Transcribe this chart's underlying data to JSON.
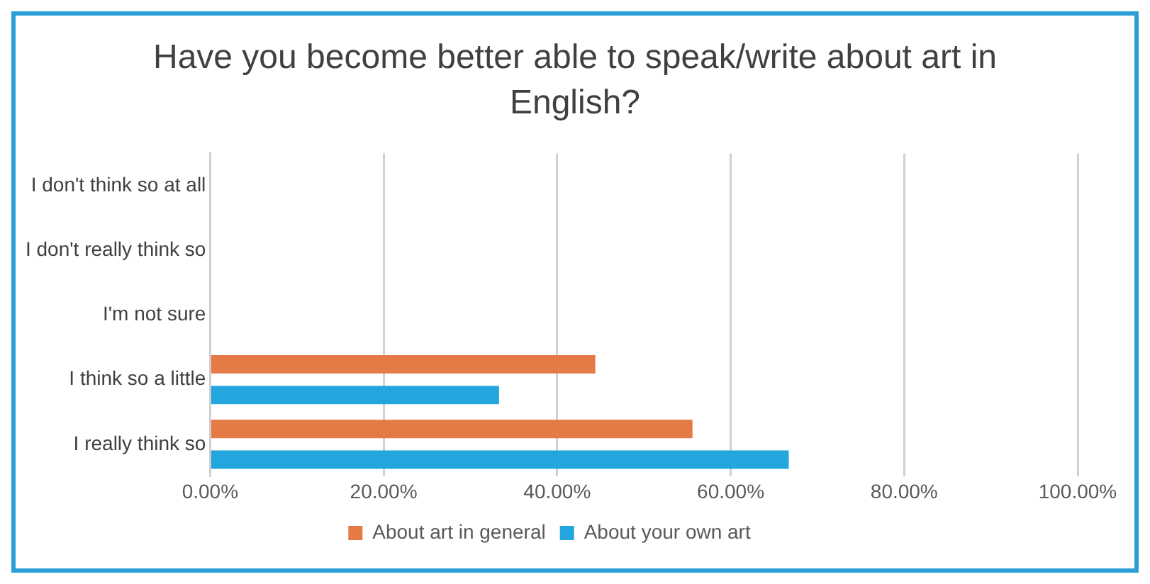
{
  "chart_data": {
    "type": "bar",
    "orientation": "horizontal",
    "title": "Have you become better able to speak/write about art in English?",
    "categories": [
      "I don't think so at all",
      "I don't really think so",
      "I'm not sure",
      "I think so a little",
      "I really think so"
    ],
    "series": [
      {
        "name": "About art in general",
        "color": "#e47a45",
        "values": [
          0,
          0,
          0,
          44.4,
          55.6
        ]
      },
      {
        "name": "About your own art",
        "color": "#22a6dd",
        "values": [
          0,
          0,
          0,
          33.3,
          66.7
        ]
      }
    ],
    "xlim": [
      0,
      100
    ],
    "xticks": [
      {
        "value": 0,
        "label": "0.00%"
      },
      {
        "value": 20,
        "label": "20.00%"
      },
      {
        "value": 40,
        "label": "40.00%"
      },
      {
        "value": 60,
        "label": "60.00%"
      },
      {
        "value": 80,
        "label": "80.00%"
      },
      {
        "value": 100,
        "label": "100.00%"
      }
    ],
    "grid": "x",
    "legend": "bottom"
  }
}
